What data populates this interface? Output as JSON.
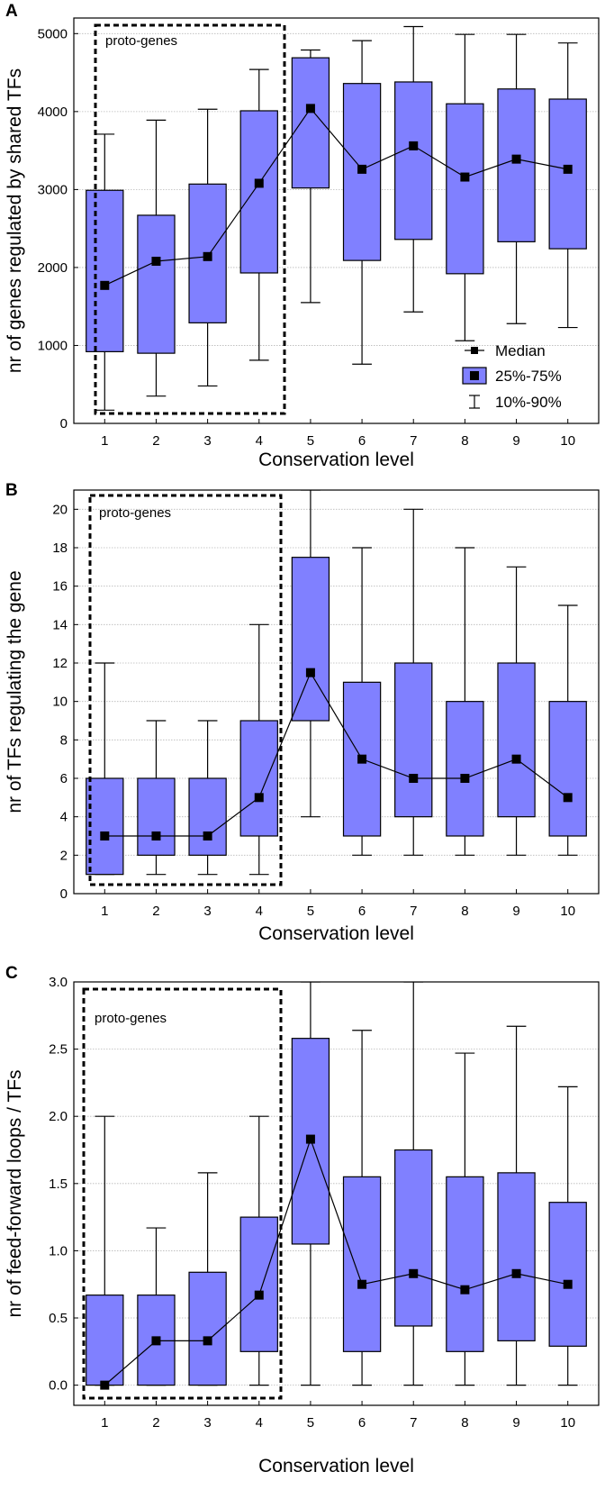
{
  "panels": [
    {
      "panel_label": "A",
      "chart_data": {
        "type": "box",
        "xlabel": "Conservation level",
        "ylabel": "nr of genes regulated by shared TFs",
        "categories": [
          "1",
          "2",
          "3",
          "4",
          "5",
          "6",
          "7",
          "8",
          "9",
          "10"
        ],
        "ylim": [
          0,
          5200
        ],
        "yticks": [
          0,
          1000,
          2000,
          3000,
          4000,
          5000
        ],
        "ytick_labels": [
          "0",
          "1000",
          "2000",
          "3000",
          "4000",
          "5000"
        ],
        "grid": true,
        "annotation": "proto-genes",
        "highlight_categories": [
          "1",
          "2",
          "3",
          "4"
        ],
        "legend": {
          "position": "bottom-right",
          "entries": [
            "Median",
            "25%-75%",
            "10%-90%"
          ]
        },
        "median": [
          1770,
          2080,
          2140,
          3080,
          4040,
          3260,
          3560,
          3160,
          3390,
          3260
        ],
        "q1": [
          920,
          900,
          1290,
          1930,
          3020,
          2090,
          2360,
          1920,
          2330,
          2240
        ],
        "q3": [
          2990,
          2670,
          3070,
          4010,
          4690,
          4360,
          4380,
          4100,
          4290,
          4160
        ],
        "p10": [
          170,
          350,
          480,
          810,
          1550,
          760,
          1430,
          1060,
          1280,
          1230
        ],
        "p90": [
          3710,
          3890,
          4030,
          4540,
          4790,
          4910,
          5090,
          4990,
          4990,
          4880
        ]
      }
    },
    {
      "panel_label": "B",
      "chart_data": {
        "type": "box",
        "xlabel": "Conservation level",
        "ylabel": "nr of TFs regulating the gene",
        "categories": [
          "1",
          "2",
          "3",
          "4",
          "5",
          "6",
          "7",
          "8",
          "9",
          "10"
        ],
        "ylim": [
          0,
          21
        ],
        "yticks": [
          0,
          2,
          4,
          6,
          8,
          10,
          12,
          14,
          16,
          18,
          20
        ],
        "ytick_labels": [
          "0",
          "2",
          "4",
          "6",
          "8",
          "10",
          "12",
          "14",
          "16",
          "18",
          "20"
        ],
        "grid": true,
        "annotation": "proto-genes",
        "highlight_categories": [
          "1",
          "2",
          "3",
          "4"
        ],
        "median": [
          3,
          3,
          3,
          5,
          11.5,
          7,
          6,
          6,
          7,
          5
        ],
        "q1": [
          1,
          2,
          2,
          3,
          9,
          3,
          4,
          3,
          4,
          3
        ],
        "q3": [
          6,
          6,
          6,
          9,
          17.5,
          11,
          12,
          10,
          12,
          10
        ],
        "p10": [
          1,
          1,
          1,
          1,
          4,
          2,
          2,
          2,
          2,
          2
        ],
        "p90": [
          12,
          9,
          9,
          14,
          21,
          18,
          20,
          18,
          17,
          15
        ]
      }
    },
    {
      "panel_label": "C",
      "chart_data": {
        "type": "box",
        "xlabel": "Conservation level",
        "ylabel": "nr of feed-forward loops / TFs",
        "categories": [
          "1",
          "2",
          "3",
          "4",
          "5",
          "6",
          "7",
          "8",
          "9",
          "10"
        ],
        "ylim": [
          -0.15,
          3.0
        ],
        "yticks": [
          0,
          0.5,
          1.0,
          1.5,
          2.0,
          2.5,
          3.0
        ],
        "ytick_labels": [
          "0.0",
          "0.5",
          "1.0",
          "1.5",
          "2.0",
          "2.5",
          "3.0"
        ],
        "grid": true,
        "annotation": "proto-genes",
        "highlight_categories": [
          "1",
          "2",
          "3",
          "4"
        ],
        "median": [
          0,
          0.33,
          0.33,
          0.67,
          1.83,
          0.75,
          0.83,
          0.71,
          0.83,
          0.75
        ],
        "q1": [
          0,
          0,
          0,
          0.25,
          1.05,
          0.25,
          0.44,
          0.25,
          0.33,
          0.29
        ],
        "q3": [
          0.67,
          0.67,
          0.84,
          1.25,
          2.58,
          1.55,
          1.75,
          1.55,
          1.58,
          1.36
        ],
        "p10": [
          0,
          0,
          0,
          0,
          0,
          0,
          0,
          0,
          0,
          0
        ],
        "p90": [
          2.0,
          1.17,
          1.58,
          2.0,
          3.0,
          2.64,
          3.0,
          2.47,
          2.67,
          2.22
        ]
      }
    }
  ]
}
